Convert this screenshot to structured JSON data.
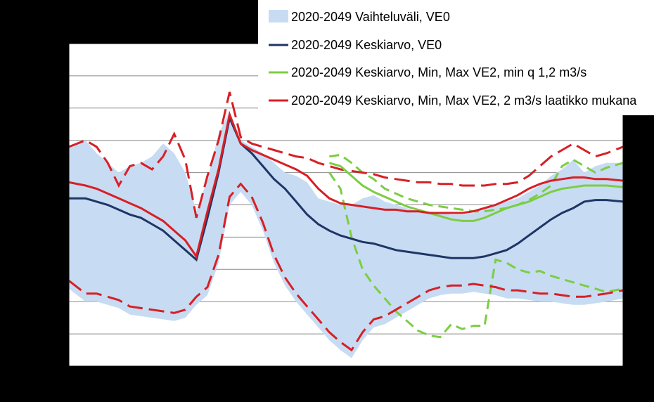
{
  "chart_data": {
    "type": "line",
    "title": "",
    "xlabel": "",
    "ylabel": "",
    "xlim": [
      0,
      100
    ],
    "ylim": [
      0,
      10
    ],
    "grid": true,
    "legend_position": "top-right",
    "colors": {
      "band": "#c7dcf2",
      "ve0_mean": "#1f3566",
      "ve2_min_q": "#7ccd43",
      "ve2_laatikko": "#d81f26"
    },
    "series": [
      {
        "id": "band",
        "name": "2020-2049 Vaihteluväli, VE0",
        "kind": "area",
        "x": [
          0,
          3,
          5,
          7,
          9,
          11,
          13,
          15,
          17,
          19,
          21,
          23,
          25,
          27,
          29,
          31,
          33,
          35,
          37,
          39,
          41,
          43,
          45,
          47,
          49,
          51,
          53,
          55,
          57,
          59,
          61,
          63,
          65,
          67,
          69,
          71,
          73,
          75,
          77,
          79,
          81,
          83,
          85,
          87,
          89,
          91,
          93,
          95,
          97,
          100
        ],
        "upper": [
          6.8,
          7.0,
          6.6,
          6.3,
          6.0,
          6.2,
          6.3,
          6.5,
          6.9,
          6.6,
          6.0,
          4.8,
          5.8,
          7.2,
          7.9,
          7.0,
          6.8,
          6.6,
          6.3,
          6.0,
          5.9,
          5.7,
          5.2,
          5.1,
          5.0,
          5.0,
          5.2,
          5.3,
          5.1,
          5.0,
          4.9,
          4.8,
          4.8,
          4.75,
          4.7,
          4.7,
          4.75,
          4.9,
          5.0,
          5.1,
          5.2,
          5.4,
          5.6,
          5.9,
          6.1,
          6.4,
          6.0,
          6.2,
          6.3,
          6.3
        ],
        "lower": [
          2.4,
          2.0,
          2.0,
          1.9,
          1.8,
          1.6,
          1.55,
          1.5,
          1.45,
          1.4,
          1.5,
          1.9,
          2.2,
          3.2,
          5.0,
          5.4,
          5.0,
          4.2,
          3.2,
          2.5,
          2.0,
          1.6,
          1.2,
          0.8,
          0.5,
          0.25,
          0.8,
          1.2,
          1.3,
          1.5,
          1.7,
          1.9,
          2.1,
          2.2,
          2.25,
          2.25,
          2.3,
          2.25,
          2.2,
          2.1,
          2.1,
          2.05,
          2.0,
          2.0,
          1.95,
          1.9,
          1.9,
          1.95,
          2.0,
          2.1
        ]
      },
      {
        "id": "ve0_mean",
        "name": "2020-2049 Keskiarvo, VE0",
        "kind": "line",
        "x": [
          0,
          3,
          5,
          7,
          9,
          11,
          13,
          15,
          17,
          19,
          21,
          23,
          25,
          27,
          29,
          31,
          33,
          35,
          37,
          39,
          41,
          43,
          45,
          47,
          49,
          51,
          53,
          55,
          57,
          59,
          61,
          63,
          65,
          67,
          69,
          71,
          73,
          75,
          77,
          79,
          81,
          83,
          85,
          87,
          89,
          91,
          93,
          95,
          97,
          100
        ],
        "values": [
          5.2,
          5.2,
          5.1,
          5.0,
          4.85,
          4.7,
          4.6,
          4.4,
          4.2,
          3.9,
          3.6,
          3.3,
          4.6,
          6.0,
          7.7,
          6.9,
          6.6,
          6.2,
          5.8,
          5.5,
          5.1,
          4.7,
          4.4,
          4.2,
          4.05,
          3.95,
          3.85,
          3.8,
          3.7,
          3.6,
          3.55,
          3.5,
          3.45,
          3.4,
          3.35,
          3.35,
          3.35,
          3.4,
          3.5,
          3.6,
          3.8,
          4.05,
          4.3,
          4.55,
          4.75,
          4.9,
          5.1,
          5.15,
          5.15,
          5.1
        ]
      },
      {
        "id": "ve2_min_q",
        "name": "2020-2049 Keskiarvo, Min, Max VE2, min q 1,2 m3/s",
        "kind": "line-with-minmax",
        "x": [
          47,
          49,
          51,
          53,
          55,
          57,
          59,
          61,
          63,
          65,
          67,
          69,
          71,
          73,
          75,
          77,
          79,
          81,
          83,
          85,
          87,
          89,
          91,
          93,
          95,
          97,
          100
        ],
        "values": [
          6.3,
          6.2,
          5.9,
          5.6,
          5.4,
          5.25,
          5.1,
          4.95,
          4.85,
          4.75,
          4.65,
          4.55,
          4.5,
          4.5,
          4.6,
          4.75,
          4.9,
          5.0,
          5.1,
          5.25,
          5.4,
          5.5,
          5.55,
          5.6,
          5.6,
          5.6,
          5.55
        ],
        "max": [
          6.5,
          6.55,
          6.3,
          6.0,
          5.8,
          5.5,
          5.35,
          5.2,
          5.1,
          5.0,
          4.95,
          4.9,
          4.85,
          4.8,
          4.8,
          4.85,
          4.9,
          5.0,
          5.15,
          5.35,
          5.6,
          6.2,
          6.4,
          6.2,
          6.0,
          6.15,
          6.3
        ],
        "min": [
          6.0,
          5.5,
          4.0,
          3.0,
          2.5,
          2.1,
          1.7,
          1.4,
          1.1,
          0.95,
          0.9,
          1.3,
          1.15,
          1.25,
          1.25,
          3.3,
          3.2,
          3.0,
          2.9,
          2.95,
          2.8,
          2.7,
          2.6,
          2.5,
          2.4,
          2.3,
          2.4
        ]
      },
      {
        "id": "ve2_laatikko",
        "name": "2020-2049 Keskiarvo, Min, Max VE2, 2 m3/s laatikko mukana",
        "kind": "line-with-minmax",
        "x": [
          0,
          3,
          5,
          7,
          9,
          11,
          13,
          15,
          17,
          19,
          21,
          23,
          25,
          27,
          29,
          31,
          33,
          35,
          37,
          39,
          41,
          43,
          45,
          47,
          49,
          51,
          53,
          55,
          57,
          59,
          61,
          63,
          65,
          67,
          69,
          71,
          73,
          75,
          77,
          79,
          81,
          83,
          85,
          87,
          89,
          91,
          93,
          95,
          97,
          100
        ],
        "values": [
          5.7,
          5.6,
          5.5,
          5.35,
          5.2,
          5.05,
          4.9,
          4.7,
          4.5,
          4.2,
          3.9,
          3.4,
          4.8,
          6.1,
          7.8,
          6.9,
          6.7,
          6.55,
          6.4,
          6.25,
          6.1,
          5.9,
          5.5,
          5.2,
          5.05,
          5.0,
          4.95,
          4.9,
          4.85,
          4.85,
          4.8,
          4.8,
          4.75,
          4.75,
          4.75,
          4.75,
          4.8,
          4.9,
          5.0,
          5.15,
          5.3,
          5.5,
          5.65,
          5.75,
          5.8,
          5.85,
          5.85,
          5.8,
          5.8,
          5.75
        ],
        "max": [
          6.8,
          7.0,
          6.8,
          6.3,
          5.6,
          6.2,
          6.3,
          6.1,
          6.5,
          7.2,
          6.4,
          4.6,
          5.9,
          7.0,
          8.5,
          7.1,
          6.9,
          6.8,
          6.7,
          6.6,
          6.5,
          6.45,
          6.3,
          6.2,
          6.1,
          6.05,
          6.0,
          5.95,
          5.85,
          5.8,
          5.75,
          5.7,
          5.7,
          5.65,
          5.65,
          5.6,
          5.6,
          5.6,
          5.65,
          5.65,
          5.7,
          5.9,
          6.2,
          6.5,
          6.7,
          6.9,
          6.7,
          6.5,
          6.6,
          6.8
        ]
      }
    ]
  },
  "legend": {
    "entries": [
      "2020-2049 Vaihteluväli, VE0",
      "2020-2049 Keskiarvo, VE0",
      "2020-2049 Keskiarvo, Min, Max VE2, min q 1,2 m3/s",
      "2020-2049 Keskiarvo, Min, Max VE2, 2 m3/s laatikko mukana"
    ]
  }
}
